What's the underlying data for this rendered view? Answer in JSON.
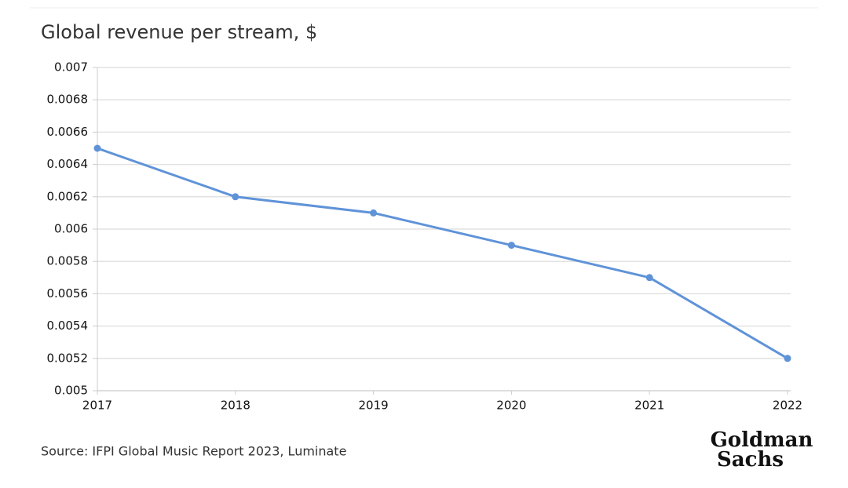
{
  "chart_data": {
    "type": "line",
    "title": "Global revenue per stream, $",
    "categories": [
      "2017",
      "2018",
      "2019",
      "2020",
      "2021",
      "2022"
    ],
    "values": [
      0.0065,
      0.0062,
      0.0061,
      0.0059,
      0.0057,
      0.0052
    ],
    "color": "#5f93d8",
    "ylim": [
      0.005,
      0.007
    ],
    "yticks": [
      0.005,
      0.0052,
      0.0054,
      0.0056,
      0.0058,
      0.006,
      0.0062,
      0.0064,
      0.0066,
      0.0068,
      0.007
    ],
    "grid": true,
    "source": "Source: IFPI Global Music Report 2023, Luminate",
    "brand": [
      "Goldman",
      "Sachs"
    ]
  }
}
